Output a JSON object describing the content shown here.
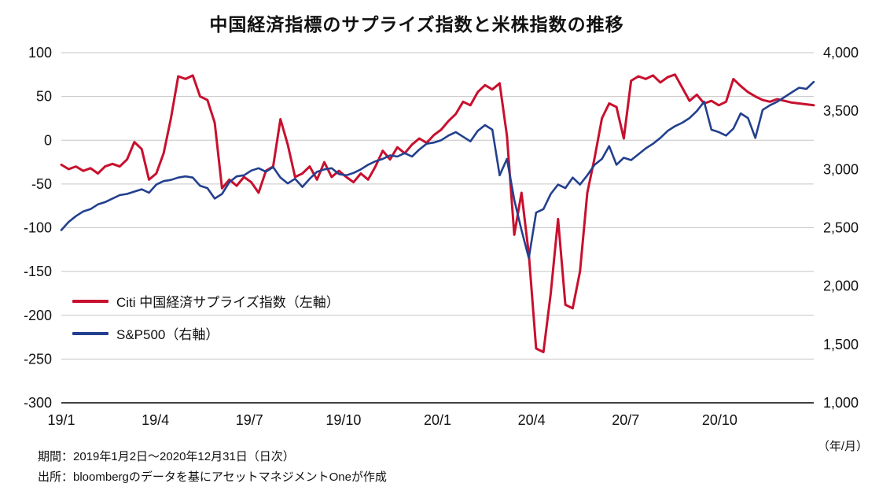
{
  "title": "中国経済指標のサプライズ指数と米株指数の推移",
  "x_axis_unit": "（年/月）",
  "footer": {
    "line1": "期間：2019年1月2日～2020年12月31日（日次）",
    "line2": "出所：bloombergのデータを基にアセットマネジメントOneが作成"
  },
  "chart_data": {
    "type": "line",
    "title": "中国経済指標のサプライズ指数と米株指数の推移",
    "grid": true,
    "legend_position": "left-middle-inside",
    "x_range": [
      0,
      24
    ],
    "x_ticks": [
      {
        "label": "19/1",
        "month": 0
      },
      {
        "label": "19/4",
        "month": 3
      },
      {
        "label": "19/7",
        "month": 6
      },
      {
        "label": "19/10",
        "month": 9
      },
      {
        "label": "20/1",
        "month": 12
      },
      {
        "label": "20/4",
        "month": 15
      },
      {
        "label": "20/7",
        "month": 18
      },
      {
        "label": "20/10",
        "month": 21
      }
    ],
    "left_axis": {
      "min": -300,
      "max": 100,
      "ticks": [
        {
          "label": "100",
          "value": 100
        },
        {
          "label": "50",
          "value": 50
        },
        {
          "label": "0",
          "value": 0
        },
        {
          "label": "-50",
          "value": -50
        },
        {
          "label": "-100",
          "value": -100
        },
        {
          "label": "-150",
          "value": -150
        },
        {
          "label": "-200",
          "value": -200
        },
        {
          "label": "-250",
          "value": -250
        },
        {
          "label": "-300",
          "value": -300
        }
      ]
    },
    "right_axis": {
      "min": 1000,
      "max": 4000,
      "ticks": [
        {
          "label": "4,000",
          "value": 4000
        },
        {
          "label": "3,500",
          "value": 3500
        },
        {
          "label": "3,000",
          "value": 3000
        },
        {
          "label": "2,500",
          "value": 2500
        },
        {
          "label": "2,000",
          "value": 2000
        },
        {
          "label": "1,500",
          "value": 1500
        },
        {
          "label": "1,000",
          "value": 1000
        }
      ]
    },
    "series": [
      {
        "name": "Citi 中国経済サプライズ指数（左軸）",
        "axis": "left",
        "color": "#c8102e",
        "stroke_width": 3,
        "values": [
          -28,
          -33,
          -30,
          -35,
          -32,
          -38,
          -30,
          -27,
          -30,
          -22,
          -2,
          -10,
          -45,
          -38,
          -15,
          25,
          73,
          70,
          74,
          50,
          46,
          20,
          -55,
          -45,
          -52,
          -42,
          -48,
          -60,
          -35,
          -30,
          24,
          -5,
          -42,
          -38,
          -30,
          -45,
          -25,
          -42,
          -35,
          -42,
          -48,
          -38,
          -45,
          -30,
          -12,
          -22,
          -8,
          -15,
          -5,
          2,
          -3,
          6,
          12,
          22,
          30,
          44,
          40,
          55,
          63,
          58,
          65,
          5,
          -108,
          -60,
          -130,
          -238,
          -242,
          -175,
          -90,
          -188,
          -192,
          -150,
          -60,
          -20,
          25,
          42,
          38,
          2,
          68,
          73,
          70,
          74,
          66,
          72,
          75,
          60,
          45,
          52,
          42,
          45,
          40,
          44,
          70,
          62,
          55,
          50,
          46,
          44,
          47,
          45,
          43,
          42,
          41,
          40
        ]
      },
      {
        "name": "S&P500（右軸）",
        "axis": "right",
        "color": "#23408e",
        "stroke_width": 2.6,
        "values": [
          2480,
          2550,
          2600,
          2640,
          2660,
          2700,
          2720,
          2750,
          2780,
          2790,
          2810,
          2830,
          2800,
          2870,
          2900,
          2910,
          2930,
          2940,
          2930,
          2860,
          2840,
          2750,
          2790,
          2890,
          2940,
          2950,
          2990,
          3010,
          2980,
          3020,
          2930,
          2880,
          2920,
          2850,
          2920,
          2980,
          3000,
          3010,
          2960,
          2950,
          2970,
          3000,
          3040,
          3070,
          3090,
          3120,
          3110,
          3140,
          3110,
          3170,
          3220,
          3230,
          3250,
          3290,
          3320,
          3280,
          3240,
          3330,
          3380,
          3340,
          2950,
          3090,
          2740,
          2480,
          2240,
          2630,
          2660,
          2790,
          2870,
          2840,
          2930,
          2870,
          2950,
          3040,
          3090,
          3200,
          3040,
          3100,
          3080,
          3130,
          3180,
          3220,
          3270,
          3330,
          3370,
          3400,
          3440,
          3500,
          3580,
          3340,
          3320,
          3290,
          3350,
          3480,
          3440,
          3270,
          3510,
          3550,
          3580,
          3620,
          3660,
          3700,
          3690,
          3750
        ]
      }
    ]
  }
}
